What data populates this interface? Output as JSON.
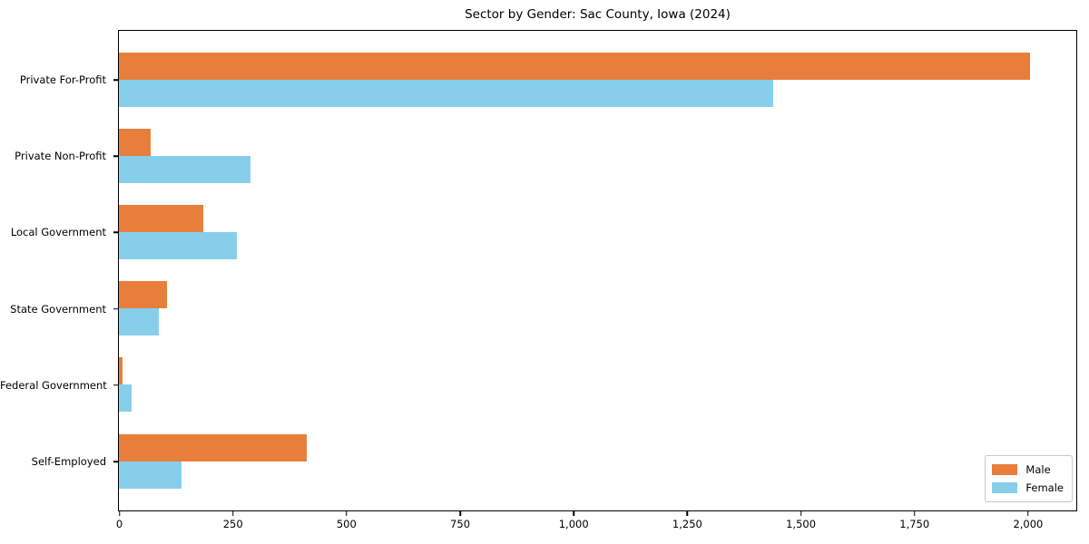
{
  "chart_data": {
    "type": "bar",
    "orientation": "horizontal",
    "title": "Sector by Gender: Sac County, Iowa (2024)",
    "categories": [
      "Private For-Profit",
      "Private Non-Profit",
      "Local Government",
      "State Government",
      "Federal Government",
      "Self-Employed"
    ],
    "series": [
      {
        "name": "Male",
        "color": "#e87e3b",
        "values": [
          2005,
          70,
          185,
          105,
          8,
          413
        ]
      },
      {
        "name": "Female",
        "color": "#87ceeb",
        "values": [
          1440,
          290,
          260,
          87,
          28,
          137
        ]
      }
    ],
    "xlabel": "",
    "ylabel": "",
    "xlim": [
      0,
      2105
    ],
    "xticks": [
      0,
      250,
      500,
      750,
      1000,
      1250,
      1500,
      1750,
      2000
    ],
    "xtick_labels": [
      "0",
      "250",
      "500",
      "750",
      "1,000",
      "1,250",
      "1,500",
      "1,750",
      "2,000"
    ],
    "grid": false,
    "legend": {
      "position": "lower right",
      "entries": [
        "Male",
        "Female"
      ]
    }
  }
}
